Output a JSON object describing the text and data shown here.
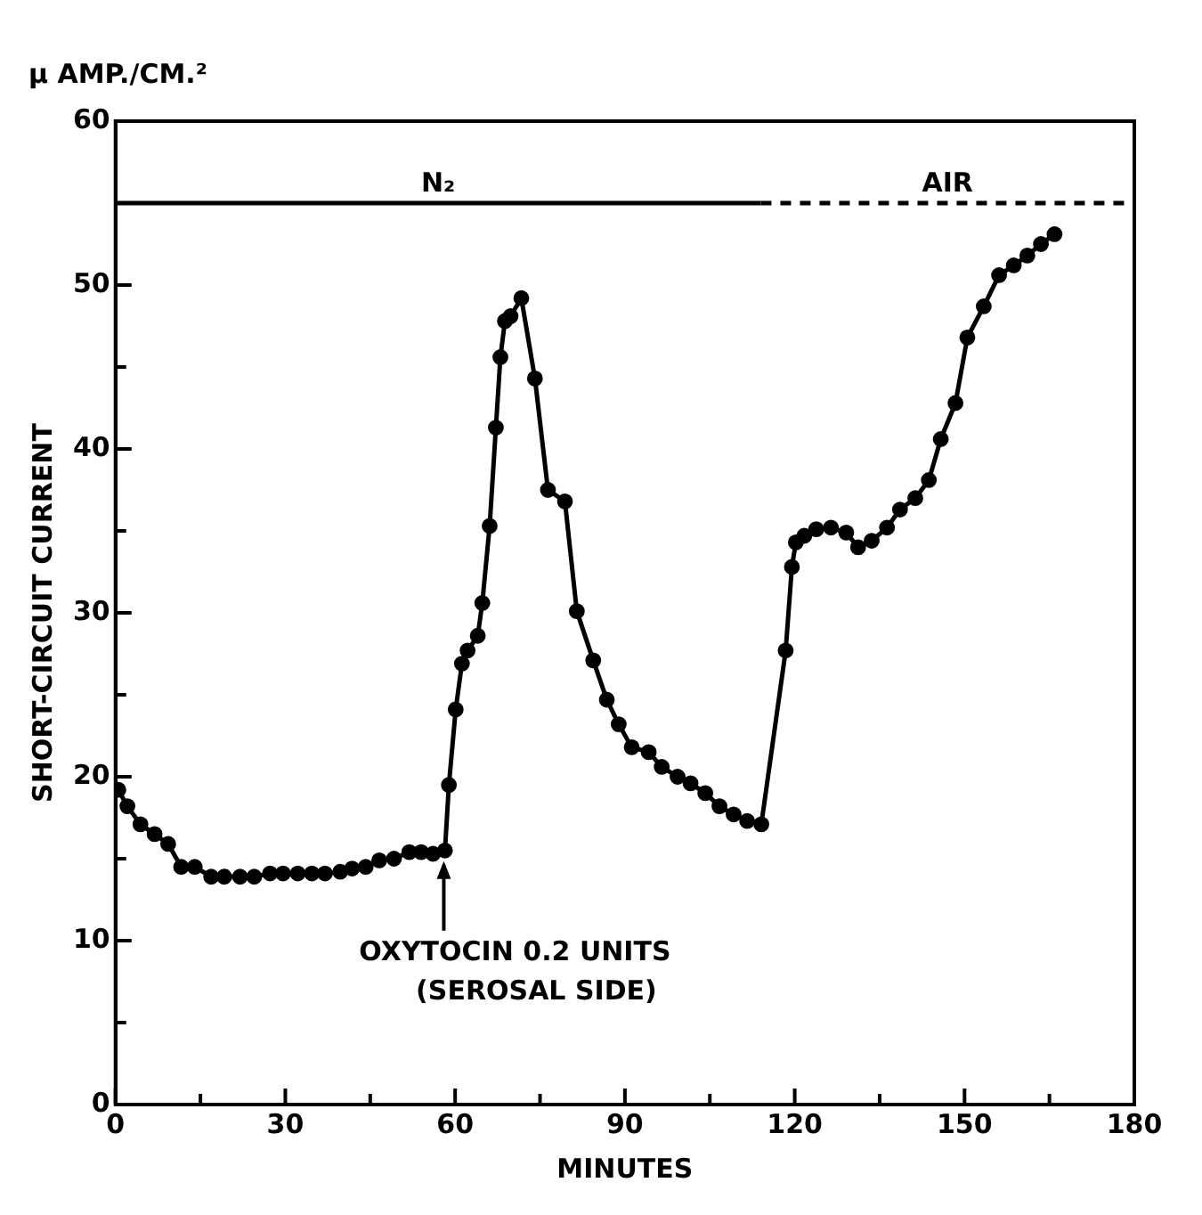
{
  "chart_data": {
    "type": "line",
    "xlabel": "MINUTES",
    "ylabel": "SHORT-CIRCUIT CURRENT",
    "annotations": [
      "μ AMP./CM.²",
      {
        "text": "OXYTOCIN 0.2 UNITS\n(SEROSAL SIDE)",
        "x": 58,
        "y": 15.5
      }
    ],
    "xlim": [
      0,
      180
    ],
    "xticks": [
      0,
      {
        "value": 15,
        "label": null
      },
      30,
      {
        "value": 45,
        "label": null
      },
      60,
      {
        "value": 75,
        "label": null
      },
      90,
      {
        "value": 105,
        "label": null
      },
      120,
      {
        "value": 135,
        "label": null
      },
      150,
      {
        "value": 165,
        "label": null
      },
      180
    ],
    "ylim": [
      0,
      60
    ],
    "yticks": [
      0,
      {
        "value": 5,
        "label": null
      },
      10,
      {
        "value": 15,
        "label": null
      },
      20,
      {
        "value": 25,
        "label": null
      },
      30,
      {
        "value": 35,
        "label": null
      },
      40,
      {
        "value": 45,
        "label": null
      },
      50,
      {
        "value": 55,
        "label": null
      },
      60
    ],
    "grid": false,
    "legend": false,
    "series": [
      {
        "color": "#000000",
        "marker": "circle",
        "line_style": "solid",
        "x": [
          0.5,
          2.1,
          4.4,
          6.9,
          9.3,
          11.6,
          14,
          16.9,
          19.2,
          22,
          24.5,
          27.3,
          29.6,
          32.2,
          34.7,
          37,
          39.7,
          41.8,
          44.2,
          46.6,
          49.2,
          51.9,
          54,
          56.1,
          58.2,
          58.9,
          60.1,
          61.2,
          62.2,
          64,
          64.8,
          66.1,
          67.2,
          68,
          68.8,
          69.8,
          71.7,
          74.1,
          76.4,
          79.4,
          81.5,
          84.4,
          86.8,
          88.9,
          91.2,
          94.2,
          96.5,
          99.3,
          101.6,
          104.2,
          106.7,
          109.2,
          111.6,
          114.1,
          118.4,
          119.5,
          120.2,
          121.7,
          123.8,
          126.4,
          129.1,
          131.2,
          133.6,
          136.3,
          138.6,
          141.3,
          143.7,
          145.8,
          148.4,
          150.5,
          153.4,
          156.1,
          158.7,
          161.1,
          163.5,
          165.9
        ],
        "values": [
          19.2,
          18.2,
          17.1,
          16.5,
          15.9,
          14.5,
          14.5,
          13.9,
          13.9,
          13.9,
          13.9,
          14.1,
          14.1,
          14.1,
          14.1,
          14.1,
          14.2,
          14.4,
          14.5,
          14.9,
          15.0,
          15.4,
          15.4,
          15.3,
          15.5,
          19.5,
          24.1,
          26.9,
          27.7,
          28.6,
          30.6,
          35.3,
          41.3,
          45.6,
          47.8,
          48.1,
          49.2,
          44.3,
          37.5,
          36.8,
          30.1,
          27.1,
          24.7,
          23.2,
          21.8,
          21.5,
          20.6,
          20.0,
          19.6,
          19.0,
          18.2,
          17.7,
          17.3,
          17.1,
          27.7,
          32.8,
          34.3,
          34.7,
          35.1,
          35.2,
          34.9,
          34.0,
          34.4,
          35.2,
          36.3,
          37.0,
          38.1,
          40.6,
          42.8,
          46.8,
          48.7,
          50.6,
          51.2,
          51.8,
          52.5,
          53.1
        ]
      },
      {
        "name": "N₂",
        "color": "#000000",
        "marker": "none",
        "line_style": "solid",
        "x": [
          0,
          114
        ],
        "values": [
          55,
          55
        ]
      },
      {
        "name": "AIR",
        "color": "#000000",
        "marker": "none",
        "line_style": "dashed",
        "x": [
          114,
          180
        ],
        "values": [
          55,
          55
        ]
      }
    ]
  }
}
